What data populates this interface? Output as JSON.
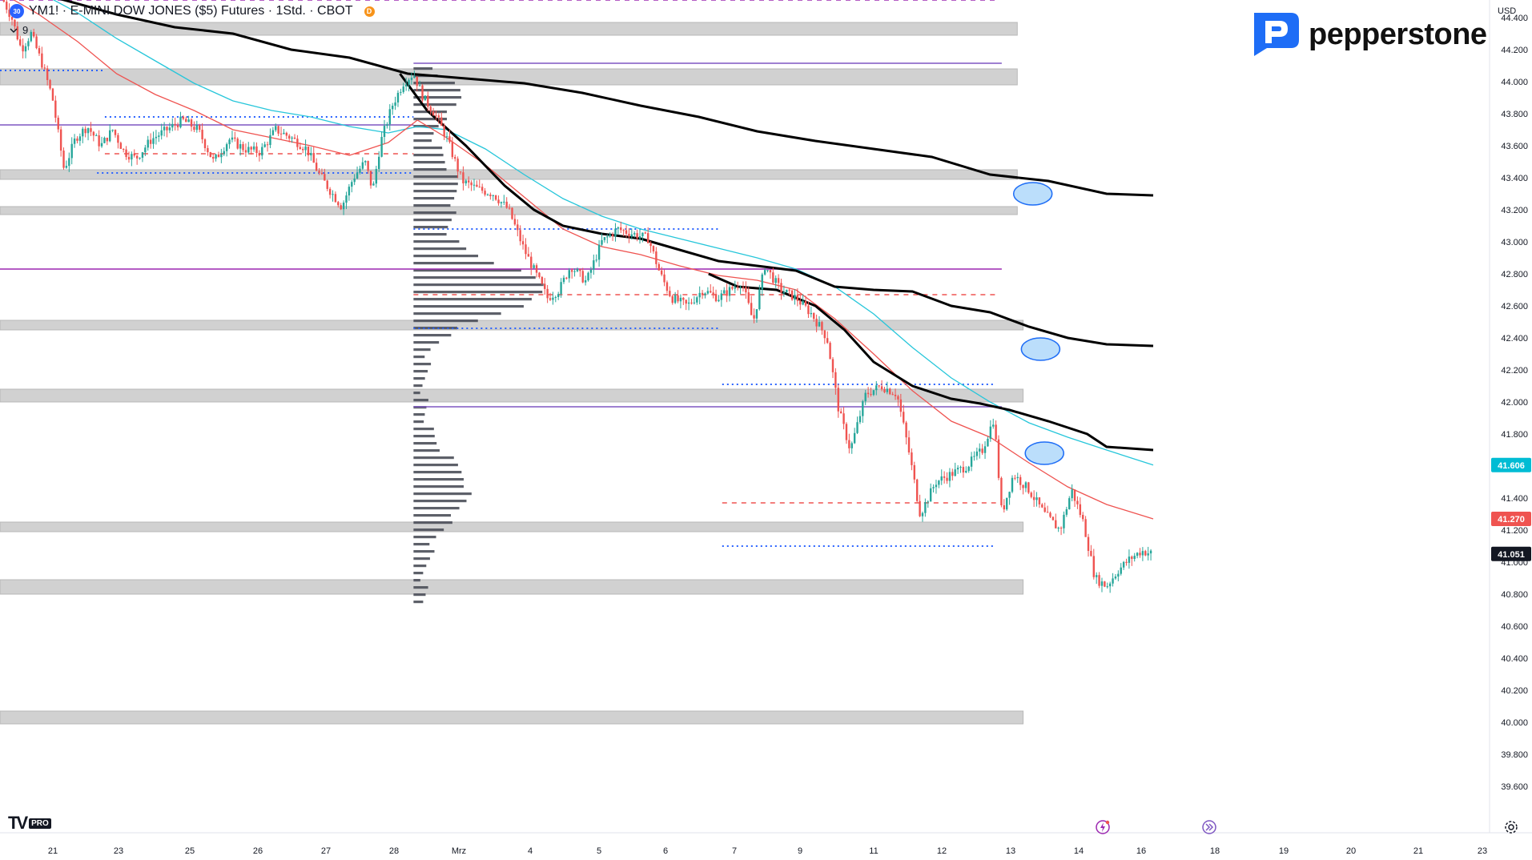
{
  "legend": {
    "symbol_short": "30",
    "title": "YM1! · E-MINI DOW JONES ($5) Futures · 1Std. · CBOT",
    "source_badge": "D",
    "interval_count": "9"
  },
  "brand": {
    "name": "pepperstone"
  },
  "platform": {
    "logo": "TV",
    "tier": "PRO"
  },
  "axis": {
    "currency": "USD"
  },
  "colors": {
    "background": "#ffffff",
    "up_candle": "#26a69a",
    "down_candle": "#ef5350",
    "vwap": "#000000",
    "ema_fast": "#ef5350",
    "ema_slow": "#26c6da",
    "zone": "#bdbdbd",
    "level_purple": "#7e57c2",
    "level_magenta": "#9c27b0",
    "dotted_blue": "#2962ff",
    "volume_profile": "#4b4f59"
  },
  "chart_data": {
    "type": "candlestick",
    "title": "YM1! · E-MINI DOW JONES ($5) Futures · 1Std. · CBOT",
    "ylim": [
      39400,
      44600
    ],
    "y_ticks": [
      44400,
      44200,
      44000,
      43800,
      43600,
      43400,
      43200,
      43000,
      42800,
      42600,
      42400,
      42200,
      42000,
      41800,
      41600,
      41400,
      41200,
      41000,
      40800,
      40600,
      40400,
      40200,
      40000,
      39800,
      39600
    ],
    "x_ticks": [
      "21",
      "23",
      "25",
      "26",
      "27",
      "28",
      "Mrz",
      "4",
      "5",
      "6",
      "7",
      "9",
      "11",
      "12",
      "13",
      "14",
      "16",
      "18",
      "19",
      "20",
      "21",
      "23"
    ],
    "price_labels": [
      {
        "value": "41.606",
        "color": "#00bcd4"
      },
      {
        "value": "41.270",
        "color": "#ef5350"
      },
      {
        "value": "41.051",
        "color": "#131722"
      }
    ],
    "last_close": 41051,
    "ema_fast_last": 41270,
    "ema_slow_last": 41606,
    "price_path": [
      [
        0,
        44550
      ],
      [
        0.6,
        44400
      ],
      [
        1.1,
        44200
      ],
      [
        1.6,
        44300
      ],
      [
        2.2,
        44100
      ],
      [
        2.7,
        43900
      ],
      [
        3.3,
        43450
      ],
      [
        3.9,
        43650
      ],
      [
        4.5,
        43720
      ],
      [
        5.2,
        43600
      ],
      [
        5.8,
        43700
      ],
      [
        6.4,
        43560
      ],
      [
        7.0,
        43520
      ],
      [
        7.8,
        43640
      ],
      [
        8.6,
        43700
      ],
      [
        9.4,
        43760
      ],
      [
        10.2,
        43700
      ],
      [
        11.0,
        43500
      ],
      [
        11.8,
        43640
      ],
      [
        12.6,
        43580
      ],
      [
        13.4,
        43560
      ],
      [
        14.2,
        43700
      ],
      [
        15.0,
        43650
      ],
      [
        15.8,
        43580
      ],
      [
        16.4,
        43430
      ],
      [
        17.0,
        43320
      ],
      [
        17.6,
        43220
      ],
      [
        18.2,
        43400
      ],
      [
        18.8,
        43500
      ],
      [
        19.2,
        43320
      ],
      [
        19.6,
        43620
      ],
      [
        20.2,
        43850
      ],
      [
        20.8,
        44000
      ],
      [
        21.3,
        44050
      ],
      [
        21.8,
        43900
      ],
      [
        22.4,
        43800
      ],
      [
        23.0,
        43650
      ],
      [
        23.8,
        43380
      ],
      [
        24.6,
        43330
      ],
      [
        25.4,
        43300
      ],
      [
        26.2,
        43200
      ],
      [
        27.0,
        42950
      ],
      [
        27.6,
        42800
      ],
      [
        28.2,
        42650
      ],
      [
        28.8,
        42700
      ],
      [
        29.4,
        42850
      ],
      [
        30.2,
        42750
      ],
      [
        31.0,
        43000
      ],
      [
        31.8,
        43080
      ],
      [
        32.6,
        43050
      ],
      [
        33.4,
        43020
      ],
      [
        34.0,
        42800
      ],
      [
        34.6,
        42650
      ],
      [
        35.4,
        42600
      ],
      [
        36.2,
        42700
      ],
      [
        37.0,
        42650
      ],
      [
        37.6,
        42700
      ],
      [
        38.2,
        42750
      ],
      [
        38.8,
        42500
      ],
      [
        39.4,
        42850
      ],
      [
        40.2,
        42700
      ],
      [
        41.0,
        42650
      ],
      [
        41.8,
        42550
      ],
      [
        42.6,
        42400
      ],
      [
        43.2,
        41950
      ],
      [
        43.8,
        41700
      ],
      [
        44.6,
        42050
      ],
      [
        45.4,
        42100
      ],
      [
        46.2,
        42050
      ],
      [
        46.8,
        41700
      ],
      [
        47.4,
        41300
      ],
      [
        48.2,
        41500
      ],
      [
        49.0,
        41550
      ],
      [
        49.8,
        41600
      ],
      [
        50.6,
        41700
      ],
      [
        51.2,
        41900
      ],
      [
        51.6,
        41300
      ],
      [
        52.2,
        41550
      ],
      [
        53.0,
        41450
      ],
      [
        53.8,
        41300
      ],
      [
        54.6,
        41200
      ],
      [
        55.2,
        41450
      ],
      [
        55.8,
        41250
      ],
      [
        56.4,
        40900
      ],
      [
        57.0,
        40850
      ],
      [
        57.6,
        40950
      ],
      [
        58.2,
        41020
      ],
      [
        58.8,
        41070
      ],
      [
        59.4,
        41051
      ]
    ],
    "vwap_upper": [
      [
        0,
        44610
      ],
      [
        3,
        44520
      ],
      [
        6,
        44420
      ],
      [
        9,
        44340
      ],
      [
        12,
        44300
      ],
      [
        15,
        44200
      ],
      [
        18,
        44150
      ],
      [
        21,
        44050
      ],
      [
        24,
        44020
      ],
      [
        27,
        43990
      ],
      [
        30,
        43930
      ],
      [
        33,
        43850
      ],
      [
        36,
        43780
      ],
      [
        39,
        43690
      ],
      [
        42,
        43630
      ],
      [
        45,
        43580
      ],
      [
        48,
        43530
      ],
      [
        51,
        43420
      ],
      [
        54,
        43380
      ],
      [
        57,
        43300
      ],
      [
        59.4,
        43290
      ]
    ],
    "vwap_lower": [
      [
        20.6,
        44050
      ],
      [
        22,
        43820
      ],
      [
        24,
        43600
      ],
      [
        26,
        43350
      ],
      [
        27.5,
        43200
      ],
      [
        29,
        43100
      ],
      [
        31,
        43050
      ],
      [
        33,
        43020
      ],
      [
        35,
        42950
      ],
      [
        37,
        42880
      ],
      [
        39,
        42850
      ],
      [
        41,
        42820
      ],
      [
        43,
        42720
      ],
      [
        45,
        42700
      ],
      [
        47,
        42690
      ],
      [
        49,
        42600
      ],
      [
        51,
        42560
      ],
      [
        53,
        42470
      ],
      [
        55,
        42400
      ],
      [
        57,
        42360
      ],
      [
        59.4,
        42350
      ]
    ],
    "vwap_third": [
      [
        36.5,
        42800
      ],
      [
        38,
        42720
      ],
      [
        40,
        42700
      ],
      [
        42,
        42600
      ],
      [
        43.5,
        42450
      ],
      [
        45,
        42250
      ],
      [
        47,
        42100
      ],
      [
        49,
        42020
      ],
      [
        50.5,
        41990
      ],
      [
        52,
        41950
      ],
      [
        54,
        41880
      ],
      [
        56,
        41800
      ],
      [
        57,
        41720
      ],
      [
        59.4,
        41700
      ]
    ],
    "ema_fast": [
      [
        0,
        44560
      ],
      [
        2,
        44420
      ],
      [
        4,
        44250
      ],
      [
        6,
        44050
      ],
      [
        8,
        43920
      ],
      [
        10,
        43820
      ],
      [
        12,
        43700
      ],
      [
        14,
        43650
      ],
      [
        16,
        43600
      ],
      [
        18,
        43540
      ],
      [
        20,
        43620
      ],
      [
        21.5,
        43760
      ],
      [
        23,
        43650
      ],
      [
        25,
        43480
      ],
      [
        27,
        43280
      ],
      [
        29,
        43080
      ],
      [
        31,
        42970
      ],
      [
        33,
        42920
      ],
      [
        35,
        42850
      ],
      [
        37,
        42790
      ],
      [
        39,
        42760
      ],
      [
        41,
        42700
      ],
      [
        43,
        42520
      ],
      [
        45,
        42300
      ],
      [
        47,
        42070
      ],
      [
        49,
        41880
      ],
      [
        51,
        41780
      ],
      [
        53,
        41620
      ],
      [
        55,
        41470
      ],
      [
        57,
        41360
      ],
      [
        59.4,
        41270
      ]
    ],
    "ema_slow": [
      [
        0,
        44640
      ],
      [
        2,
        44560
      ],
      [
        4,
        44430
      ],
      [
        6,
        44270
      ],
      [
        8,
        44130
      ],
      [
        10,
        43990
      ],
      [
        12,
        43880
      ],
      [
        14,
        43820
      ],
      [
        16,
        43780
      ],
      [
        18,
        43720
      ],
      [
        20,
        43680
      ],
      [
        21.5,
        43720
      ],
      [
        23,
        43700
      ],
      [
        25,
        43580
      ],
      [
        27,
        43420
      ],
      [
        29,
        43270
      ],
      [
        31,
        43160
      ],
      [
        33,
        43080
      ],
      [
        35,
        43020
      ],
      [
        37,
        42960
      ],
      [
        39,
        42900
      ],
      [
        41,
        42830
      ],
      [
        43,
        42720
      ],
      [
        45,
        42550
      ],
      [
        47,
        42340
      ],
      [
        49,
        42150
      ],
      [
        51,
        42000
      ],
      [
        53,
        41870
      ],
      [
        55,
        41780
      ],
      [
        57,
        41700
      ],
      [
        59.4,
        41606
      ]
    ],
    "zones": [
      {
        "y1": 44290,
        "y2": 44370,
        "x2": 52.4
      },
      {
        "y1": 43980,
        "y2": 44080,
        "x2": 52.4
      },
      {
        "y1": 43390,
        "y2": 43450,
        "x2": 52.4
      },
      {
        "y1": 43170,
        "y2": 43220,
        "x2": 52.4
      },
      {
        "y1": 42450,
        "y2": 42510,
        "x2": 52.7
      },
      {
        "y1": 42000,
        "y2": 42080,
        "x2": 52.7
      },
      {
        "y1": 41190,
        "y2": 41250,
        "x2": 52.7
      },
      {
        "y1": 40800,
        "y2": 40890,
        "x2": 52.7
      },
      {
        "y1": 39990,
        "y2": 40070,
        "x2": 52.7
      }
    ],
    "solid_levels": [
      {
        "y": 44115,
        "x1": 21.3,
        "x2": 51.6,
        "color": "#7e57c2"
      },
      {
        "y": 43730,
        "x1": 0,
        "x2": 21.3,
        "color": "#7e57c2"
      },
      {
        "y": 42830,
        "x1": 0,
        "x2": 51.6,
        "color": "#9c27b0"
      },
      {
        "y": 41970,
        "x1": 21.3,
        "x2": 51.6,
        "color": "#7e57c2"
      }
    ],
    "dotted_levels": [
      {
        "y": 44070,
        "x1": 0,
        "x2": 5.4,
        "color": "#2962ff"
      },
      {
        "y": 43780,
        "x1": 5.4,
        "x2": 21.3,
        "color": "#2962ff"
      },
      {
        "y": 43430,
        "x1": 5.0,
        "x2": 21.3,
        "color": "#2962ff"
      },
      {
        "y": 43080,
        "x1": 21.3,
        "x2": 37.0,
        "color": "#2962ff"
      },
      {
        "y": 42460,
        "x1": 21.3,
        "x2": 37.0,
        "color": "#2962ff"
      },
      {
        "y": 42110,
        "x1": 37.2,
        "x2": 51.3,
        "color": "#2962ff"
      },
      {
        "y": 41100,
        "x1": 37.2,
        "x2": 51.3,
        "color": "#2962ff"
      }
    ],
    "dashed_levels": [
      {
        "y": 44510,
        "x1": 0,
        "x2": 51.3,
        "color": "#9c27b0"
      },
      {
        "y": 43550,
        "x1": 5.4,
        "x2": 21.3,
        "color": "#ef5350"
      },
      {
        "y": 42670,
        "x1": 21.3,
        "x2": 51.3,
        "color": "#ef5350"
      },
      {
        "y": 41370,
        "x1": 37.2,
        "x2": 51.3,
        "color": "#ef5350"
      }
    ],
    "ellipses": [
      {
        "x": 53.2,
        "y": 43300
      },
      {
        "x": 53.6,
        "y": 42330
      },
      {
        "x": 53.8,
        "y": 41680
      }
    ]
  }
}
